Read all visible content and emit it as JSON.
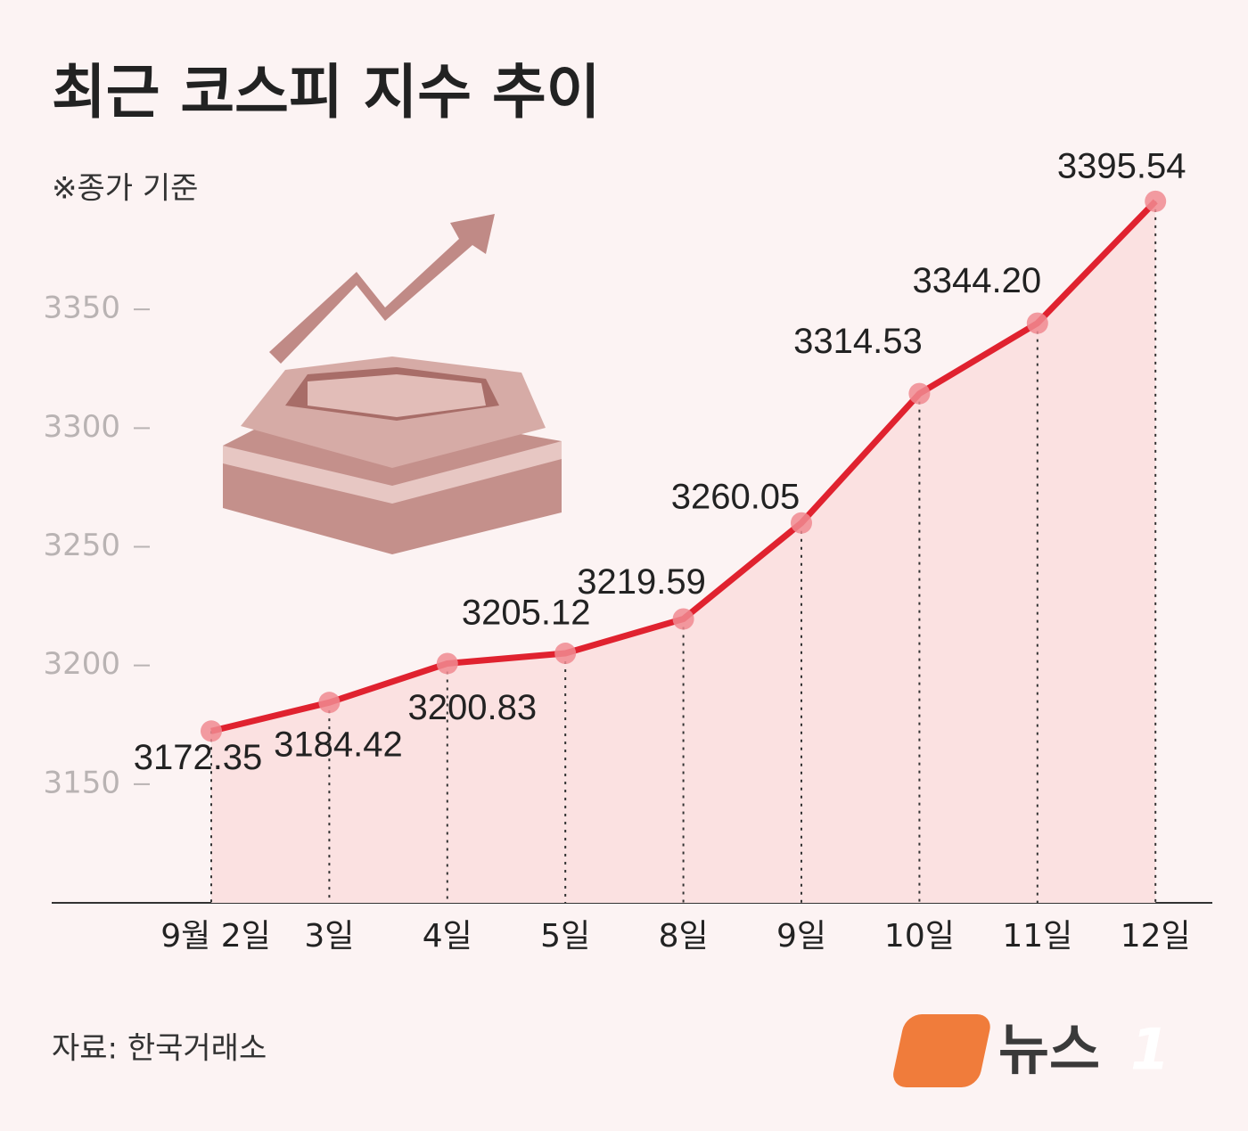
{
  "chart_data": {
    "type": "line",
    "title": "최근 코스피 지수 추이",
    "note": "※종가 기준",
    "source": "자료: 한국거래소",
    "logo": [
      "뉴스",
      "1"
    ],
    "categories": [
      "9월 2일",
      "3일",
      "4일",
      "5일",
      "8일",
      "9일",
      "10일",
      "11일",
      "12일"
    ],
    "values": [
      3172.35,
      3184.42,
      3200.83,
      3205.12,
      3219.59,
      3260.05,
      3314.53,
      3344.2,
      3395.54
    ],
    "value_labels": [
      "3172.35",
      "3184.42",
      "3200.83",
      "3205.12",
      "3219.59",
      "3260.05",
      "3314.53",
      "3344.20",
      "3395.54"
    ],
    "color": "#e0222f",
    "ylim": [
      3100,
      3400
    ],
    "yticks": [
      3150,
      3200,
      3250,
      3300,
      3350
    ]
  }
}
